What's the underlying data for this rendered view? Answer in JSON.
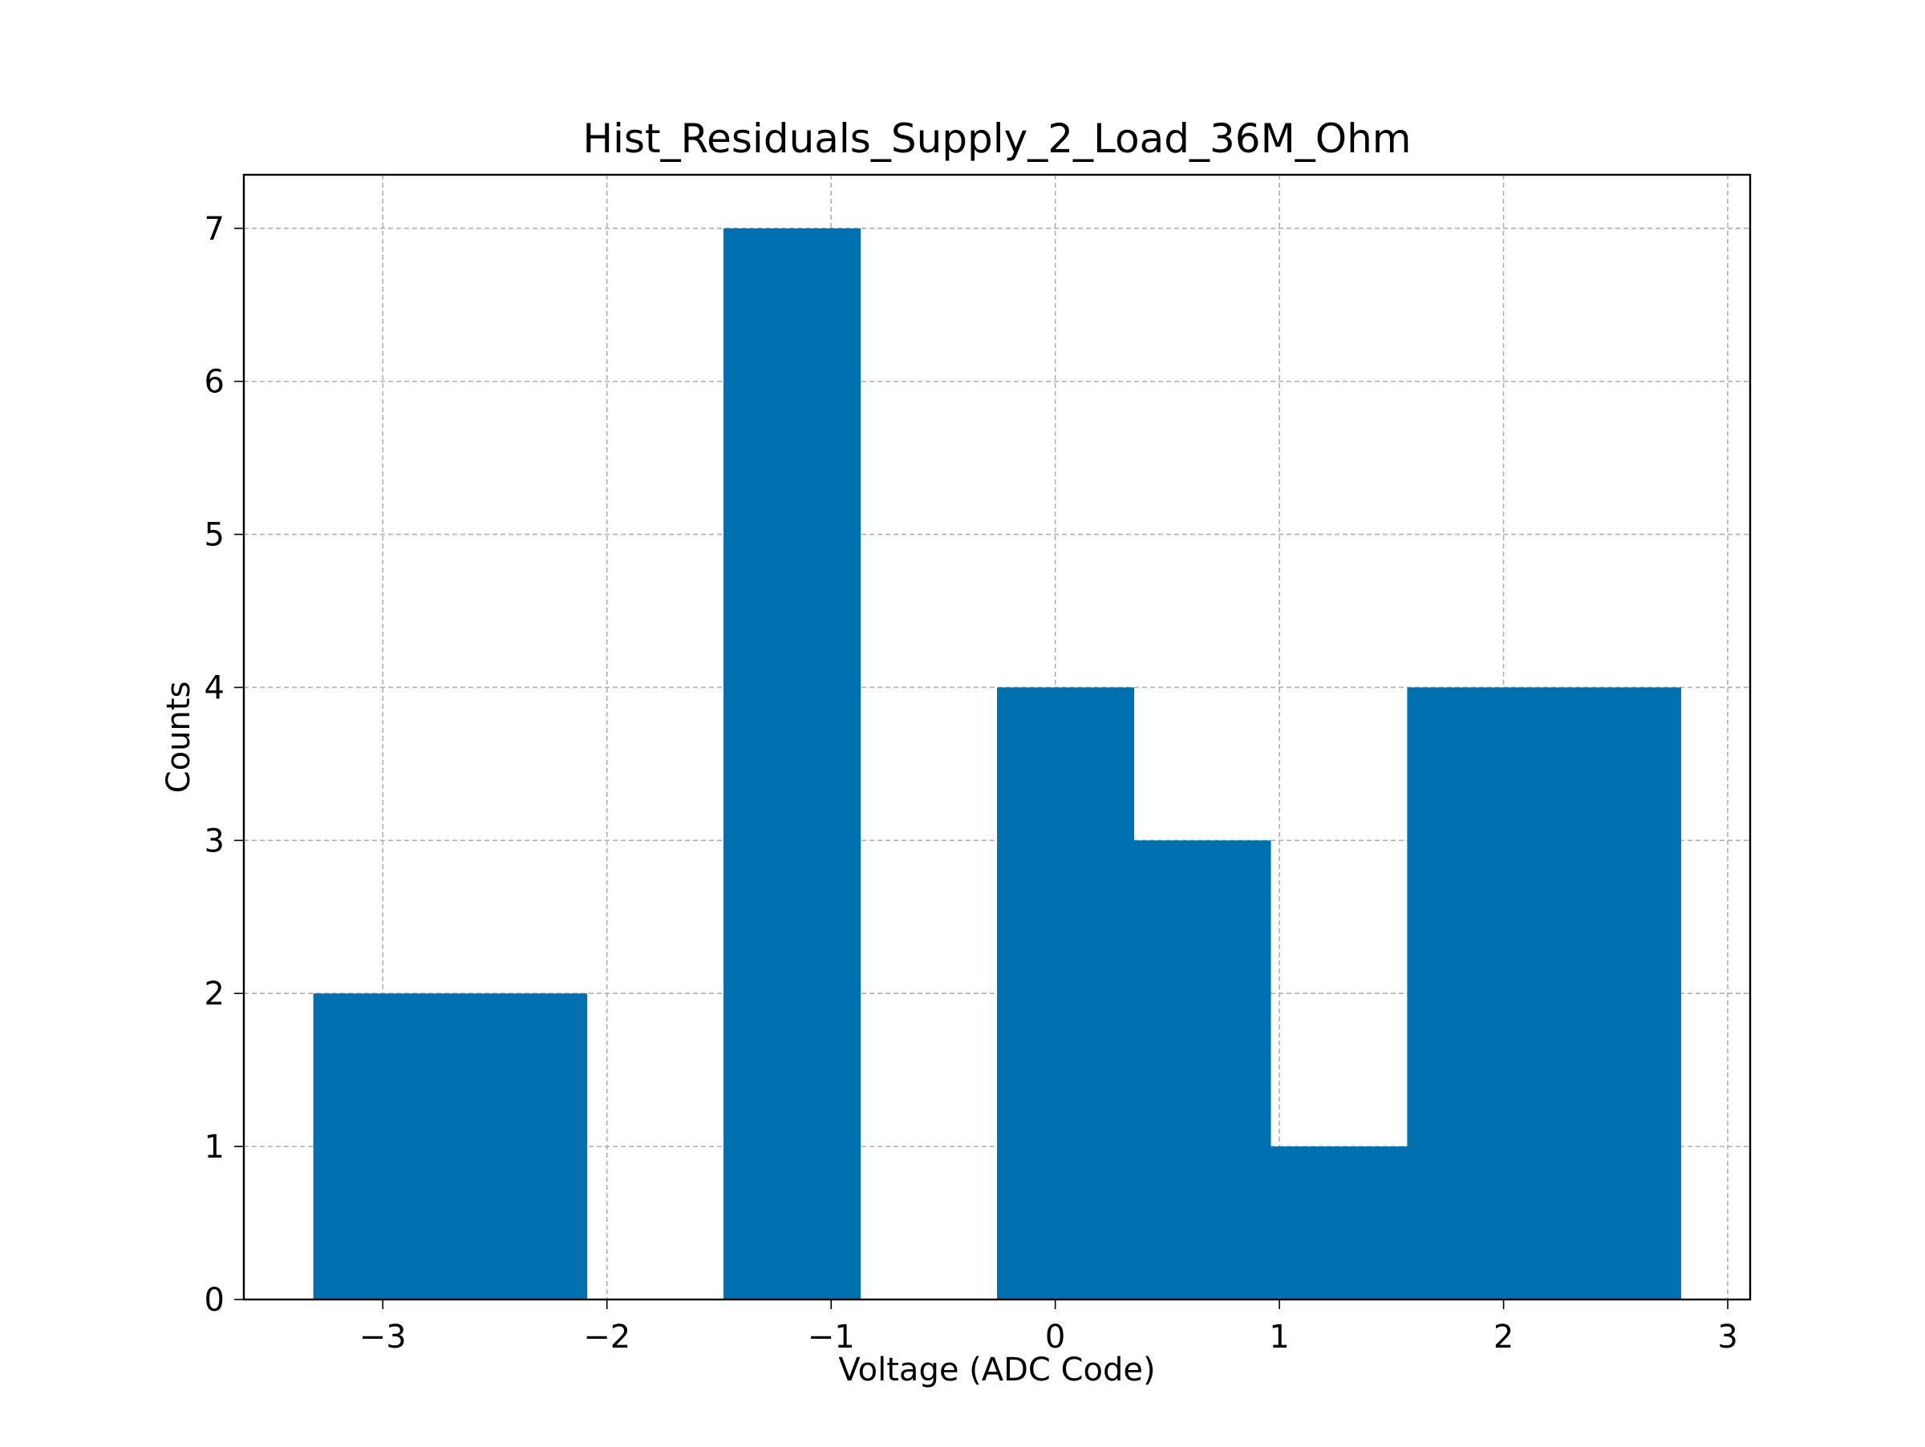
{
  "chart_data": {
    "type": "bar",
    "title": "Hist_Residuals_Supply_2_Load_36M_Ohm",
    "xlabel": "Voltage (ADC Code)",
    "ylabel": "Counts",
    "xlim": [
      -3.62,
      3.1
    ],
    "ylim": [
      0,
      7.35
    ],
    "xticks": [
      -3,
      -2,
      -1,
      0,
      1,
      2,
      3
    ],
    "xtick_labels": [
      "−3",
      "−2",
      "−1",
      "0",
      "1",
      "2",
      "3"
    ],
    "yticks": [
      0,
      1,
      2,
      3,
      4,
      5,
      6,
      7
    ],
    "ytick_labels": [
      "0",
      "1",
      "2",
      "3",
      "4",
      "5",
      "6",
      "7"
    ],
    "grid": true,
    "bar_color": "#0070b0",
    "bins": [
      {
        "x0": -3.31,
        "x1": -2.7,
        "count": 2
      },
      {
        "x0": -2.7,
        "x1": -2.09,
        "count": 2
      },
      {
        "x0": -2.09,
        "x1": -1.48,
        "count": 0
      },
      {
        "x0": -1.48,
        "x1": -0.87,
        "count": 7
      },
      {
        "x0": -0.87,
        "x1": -0.26,
        "count": 0
      },
      {
        "x0": -0.26,
        "x1": 0.35,
        "count": 4
      },
      {
        "x0": 0.35,
        "x1": 0.96,
        "count": 3
      },
      {
        "x0": 0.96,
        "x1": 1.57,
        "count": 1
      },
      {
        "x0": 1.57,
        "x1": 2.18,
        "count": 4
      },
      {
        "x0": 2.18,
        "x1": 2.79,
        "count": 4
      }
    ]
  }
}
